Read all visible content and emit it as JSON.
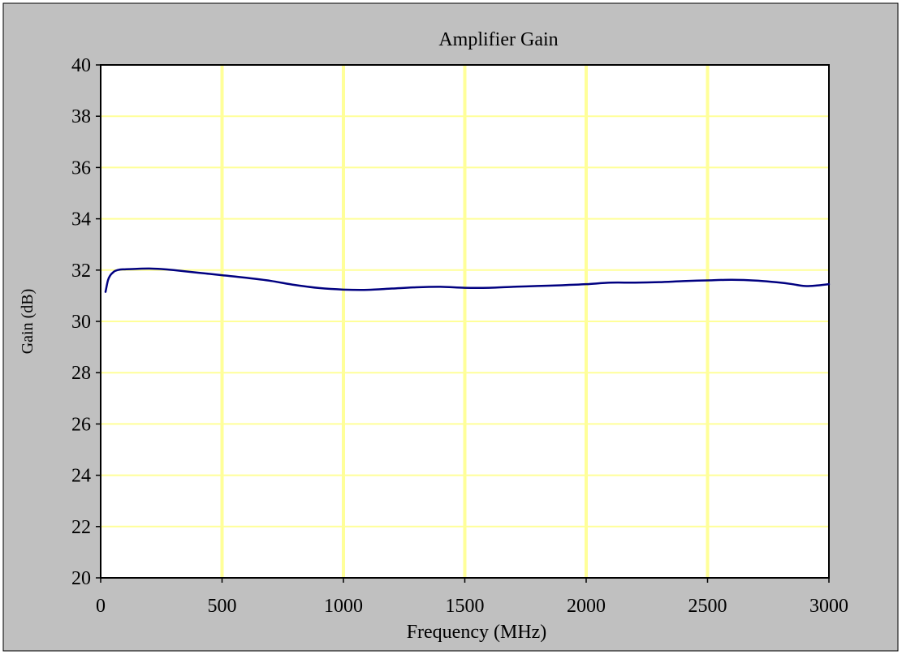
{
  "chart_data": {
    "type": "line",
    "title": "Amplifier Gain",
    "xlabel": "Frequency (MHz)",
    "ylabel": "Gain (dB)",
    "xlim": [
      0,
      3000
    ],
    "ylim": [
      20,
      40
    ],
    "x_ticks": [
      0,
      500,
      1000,
      1500,
      2000,
      2500,
      3000
    ],
    "y_ticks": [
      20,
      22,
      24,
      26,
      28,
      30,
      32,
      34,
      36,
      38,
      40
    ],
    "grid": true,
    "legend": "none",
    "colors": {
      "frame_background": "#c0c0c0",
      "plot_background": "#ffffff",
      "vertical_grid": "#ffff99",
      "horizontal_grid": "#ffff99",
      "series": "#000080"
    },
    "series": [
      {
        "x": [
          20,
          30,
          40,
          50,
          60,
          80,
          100,
          150,
          200,
          250,
          300,
          400,
          500,
          600,
          700,
          800,
          900,
          1000,
          1100,
          1200,
          1300,
          1400,
          1500,
          1600,
          1700,
          1800,
          1900,
          2000,
          2100,
          2200,
          2300,
          2400,
          2500,
          2600,
          2700,
          2800,
          2850,
          2900,
          2950,
          3000
        ],
        "values": [
          31.15,
          31.6,
          31.8,
          31.9,
          31.97,
          32.02,
          32.03,
          32.05,
          32.06,
          32.04,
          32.0,
          31.9,
          31.8,
          31.7,
          31.58,
          31.42,
          31.3,
          31.24,
          31.23,
          31.28,
          31.33,
          31.35,
          31.31,
          31.31,
          31.35,
          31.38,
          31.41,
          31.45,
          31.51,
          31.51,
          31.53,
          31.57,
          31.6,
          31.62,
          31.59,
          31.51,
          31.45,
          31.38,
          31.4,
          31.45
        ]
      }
    ]
  }
}
